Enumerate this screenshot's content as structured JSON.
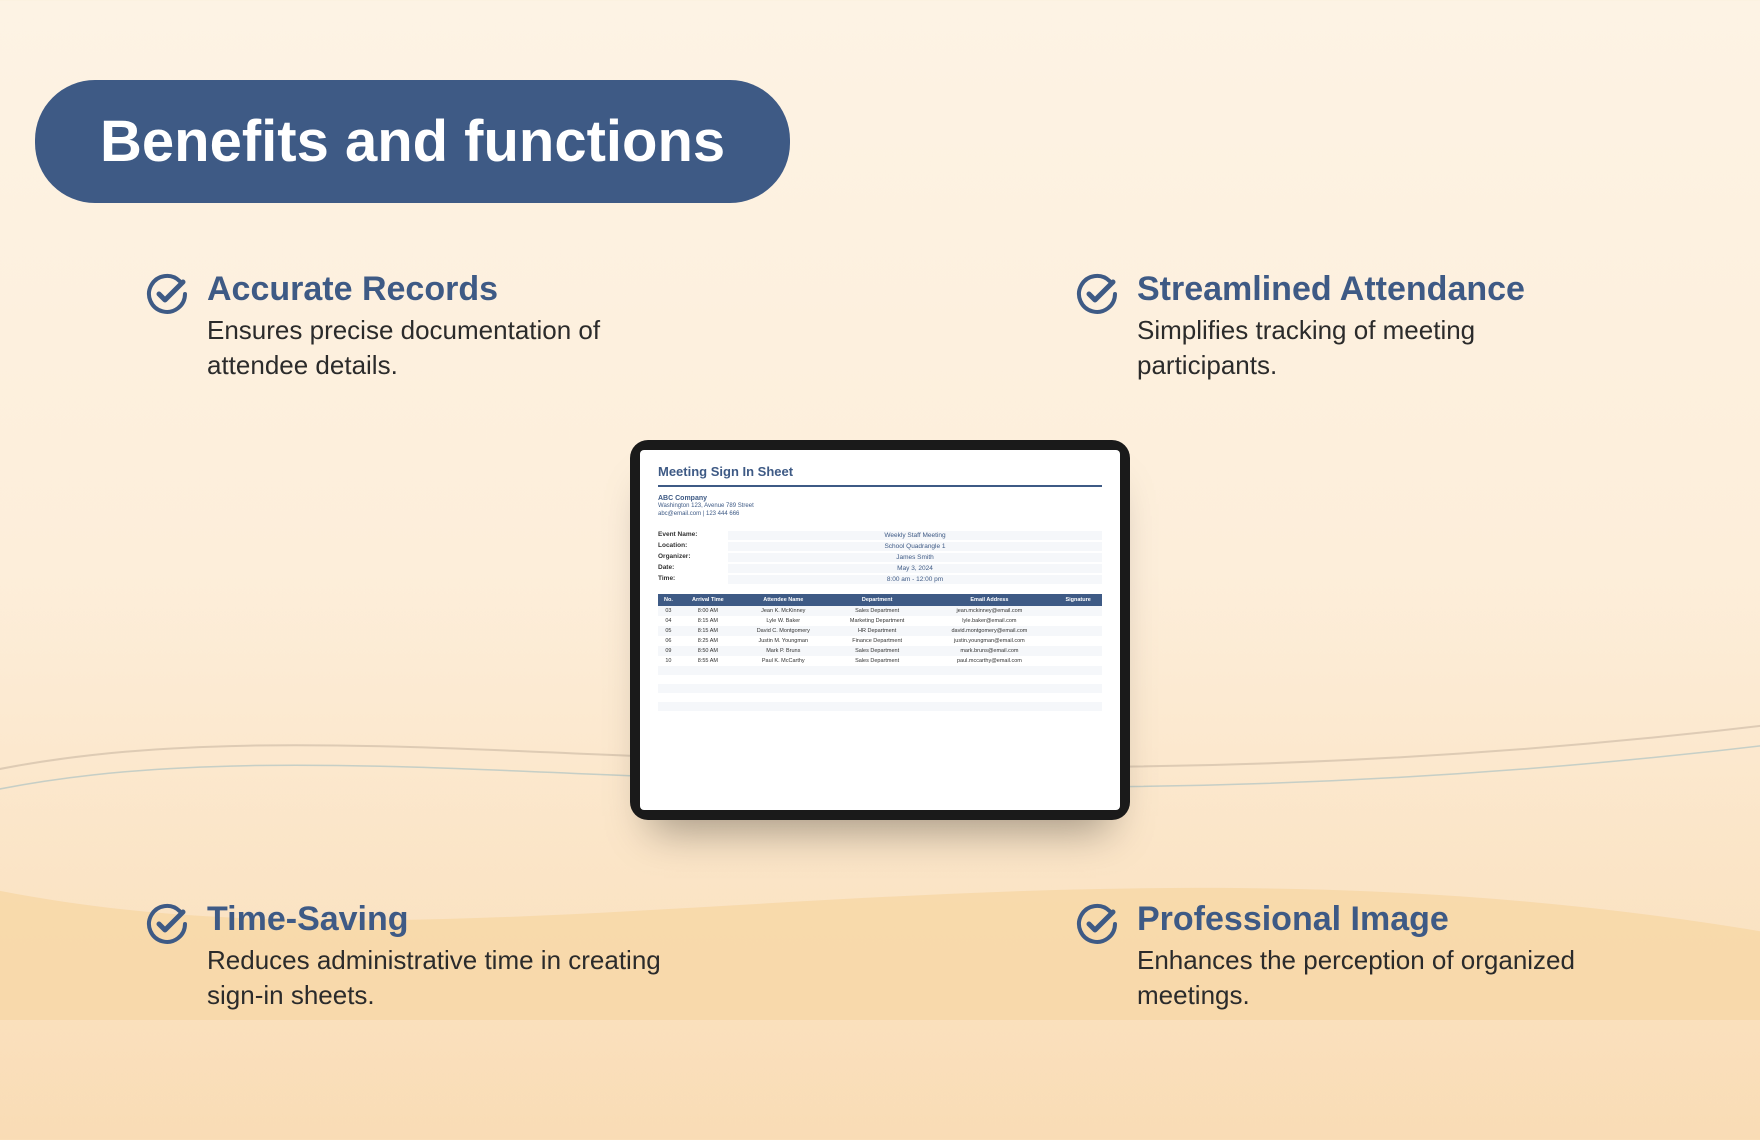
{
  "header": {
    "title": "Benefits and functions"
  },
  "colors": {
    "accent": "#3e5a85",
    "bg_top": "#fdf3e4",
    "bg_bottom": "#f9dcb5",
    "text": "#2b2b2b"
  },
  "benefits": {
    "top_left": {
      "title": "Accurate Records",
      "desc": "Ensures precise documentation of attendee details."
    },
    "top_right": {
      "title": "Streamlined Attendance",
      "desc": "Simplifies tracking of meeting participants."
    },
    "bottom_left": {
      "title": "Time-Saving",
      "desc": "Reduces administrative time in creating sign-in sheets."
    },
    "bottom_right": {
      "title": "Professional Image",
      "desc": "Enhances the perception of organized meetings."
    }
  },
  "sheet": {
    "title": "Meeting Sign In Sheet",
    "company": "ABC Company",
    "address": "Washington 123, Avenue 789 Street",
    "contact": "abc@email.com | 123 444 666",
    "meta": {
      "event_label": "Event Name:",
      "event_value": "Weekly Staff Meeting",
      "location_label": "Location:",
      "location_value": "School Quadrangle 1",
      "organizer_label": "Organizer:",
      "organizer_value": "James Smith",
      "date_label": "Date:",
      "date_value": "May 3, 2024",
      "time_label": "Time:",
      "time_value": "8:00 am - 12:00 pm"
    },
    "columns": [
      "No.",
      "Arrival Time",
      "Attendee Name",
      "Department",
      "Email Address",
      "Signature"
    ],
    "rows": [
      [
        "03",
        "8:00 AM",
        "Jean K. McKinney",
        "Sales Department",
        "jean.mckinney@email.com",
        ""
      ],
      [
        "04",
        "8:15 AM",
        "Lyle W. Baker",
        "Marketing Department",
        "lyle.baker@email.com",
        ""
      ],
      [
        "05",
        "8:15 AM",
        "David C. Montgomery",
        "HR Department",
        "david.montgomery@email.com",
        ""
      ],
      [
        "06",
        "8:25 AM",
        "Justin M. Youngman",
        "Finance Department",
        "justin.youngman@email.com",
        ""
      ],
      [
        "09",
        "8:50 AM",
        "Mark P. Bruns",
        "Sales Department",
        "mark.bruns@email.com",
        ""
      ],
      [
        "10",
        "8:55 AM",
        "Paul K. McCarthy",
        "Sales Department",
        "paul.mccarthy@email.com",
        ""
      ]
    ]
  }
}
